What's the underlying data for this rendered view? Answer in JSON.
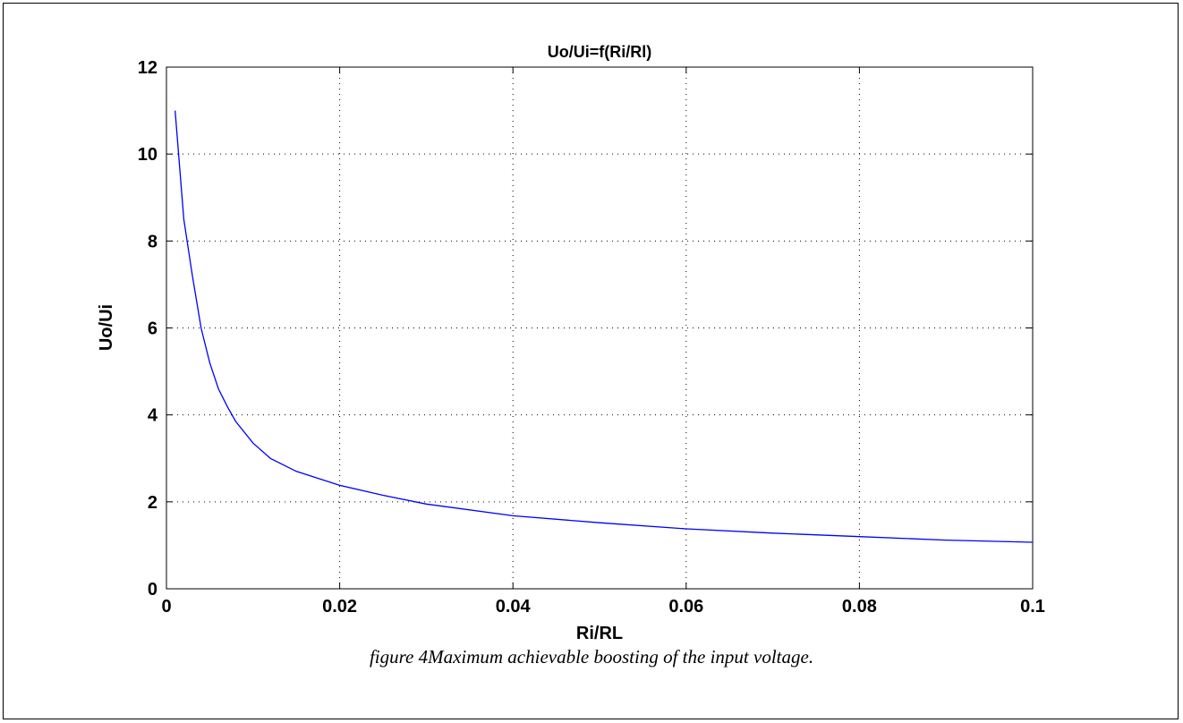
{
  "chart_data": {
    "type": "line",
    "title": "Uo/Ui=f(Ri/Rl)",
    "xlabel": "Ri/RL",
    "ylabel": "Uo/Ui",
    "xlim": [
      0,
      0.1
    ],
    "ylim": [
      0,
      12
    ],
    "x_ticks": [
      "0",
      "0.02",
      "0.04",
      "0.06",
      "0.08",
      "0.1"
    ],
    "y_ticks": [
      "0",
      "2",
      "4",
      "6",
      "8",
      "10",
      "12"
    ],
    "grid": true,
    "series": [
      {
        "color": "#0000ff",
        "x": [
          0.001,
          0.002,
          0.003,
          0.004,
          0.005,
          0.006,
          0.007,
          0.008,
          0.01,
          0.012,
          0.015,
          0.02,
          0.025,
          0.03,
          0.04,
          0.05,
          0.06,
          0.07,
          0.08,
          0.09,
          0.1
        ],
        "y": [
          11.0,
          8.5,
          7.2,
          6.0,
          5.2,
          4.6,
          4.2,
          3.85,
          3.35,
          3.0,
          2.7,
          2.38,
          2.15,
          1.95,
          1.68,
          1.52,
          1.38,
          1.28,
          1.2,
          1.12,
          1.07
        ]
      }
    ]
  },
  "caption": "figure 4Maximum achievable boosting of the input voltage."
}
